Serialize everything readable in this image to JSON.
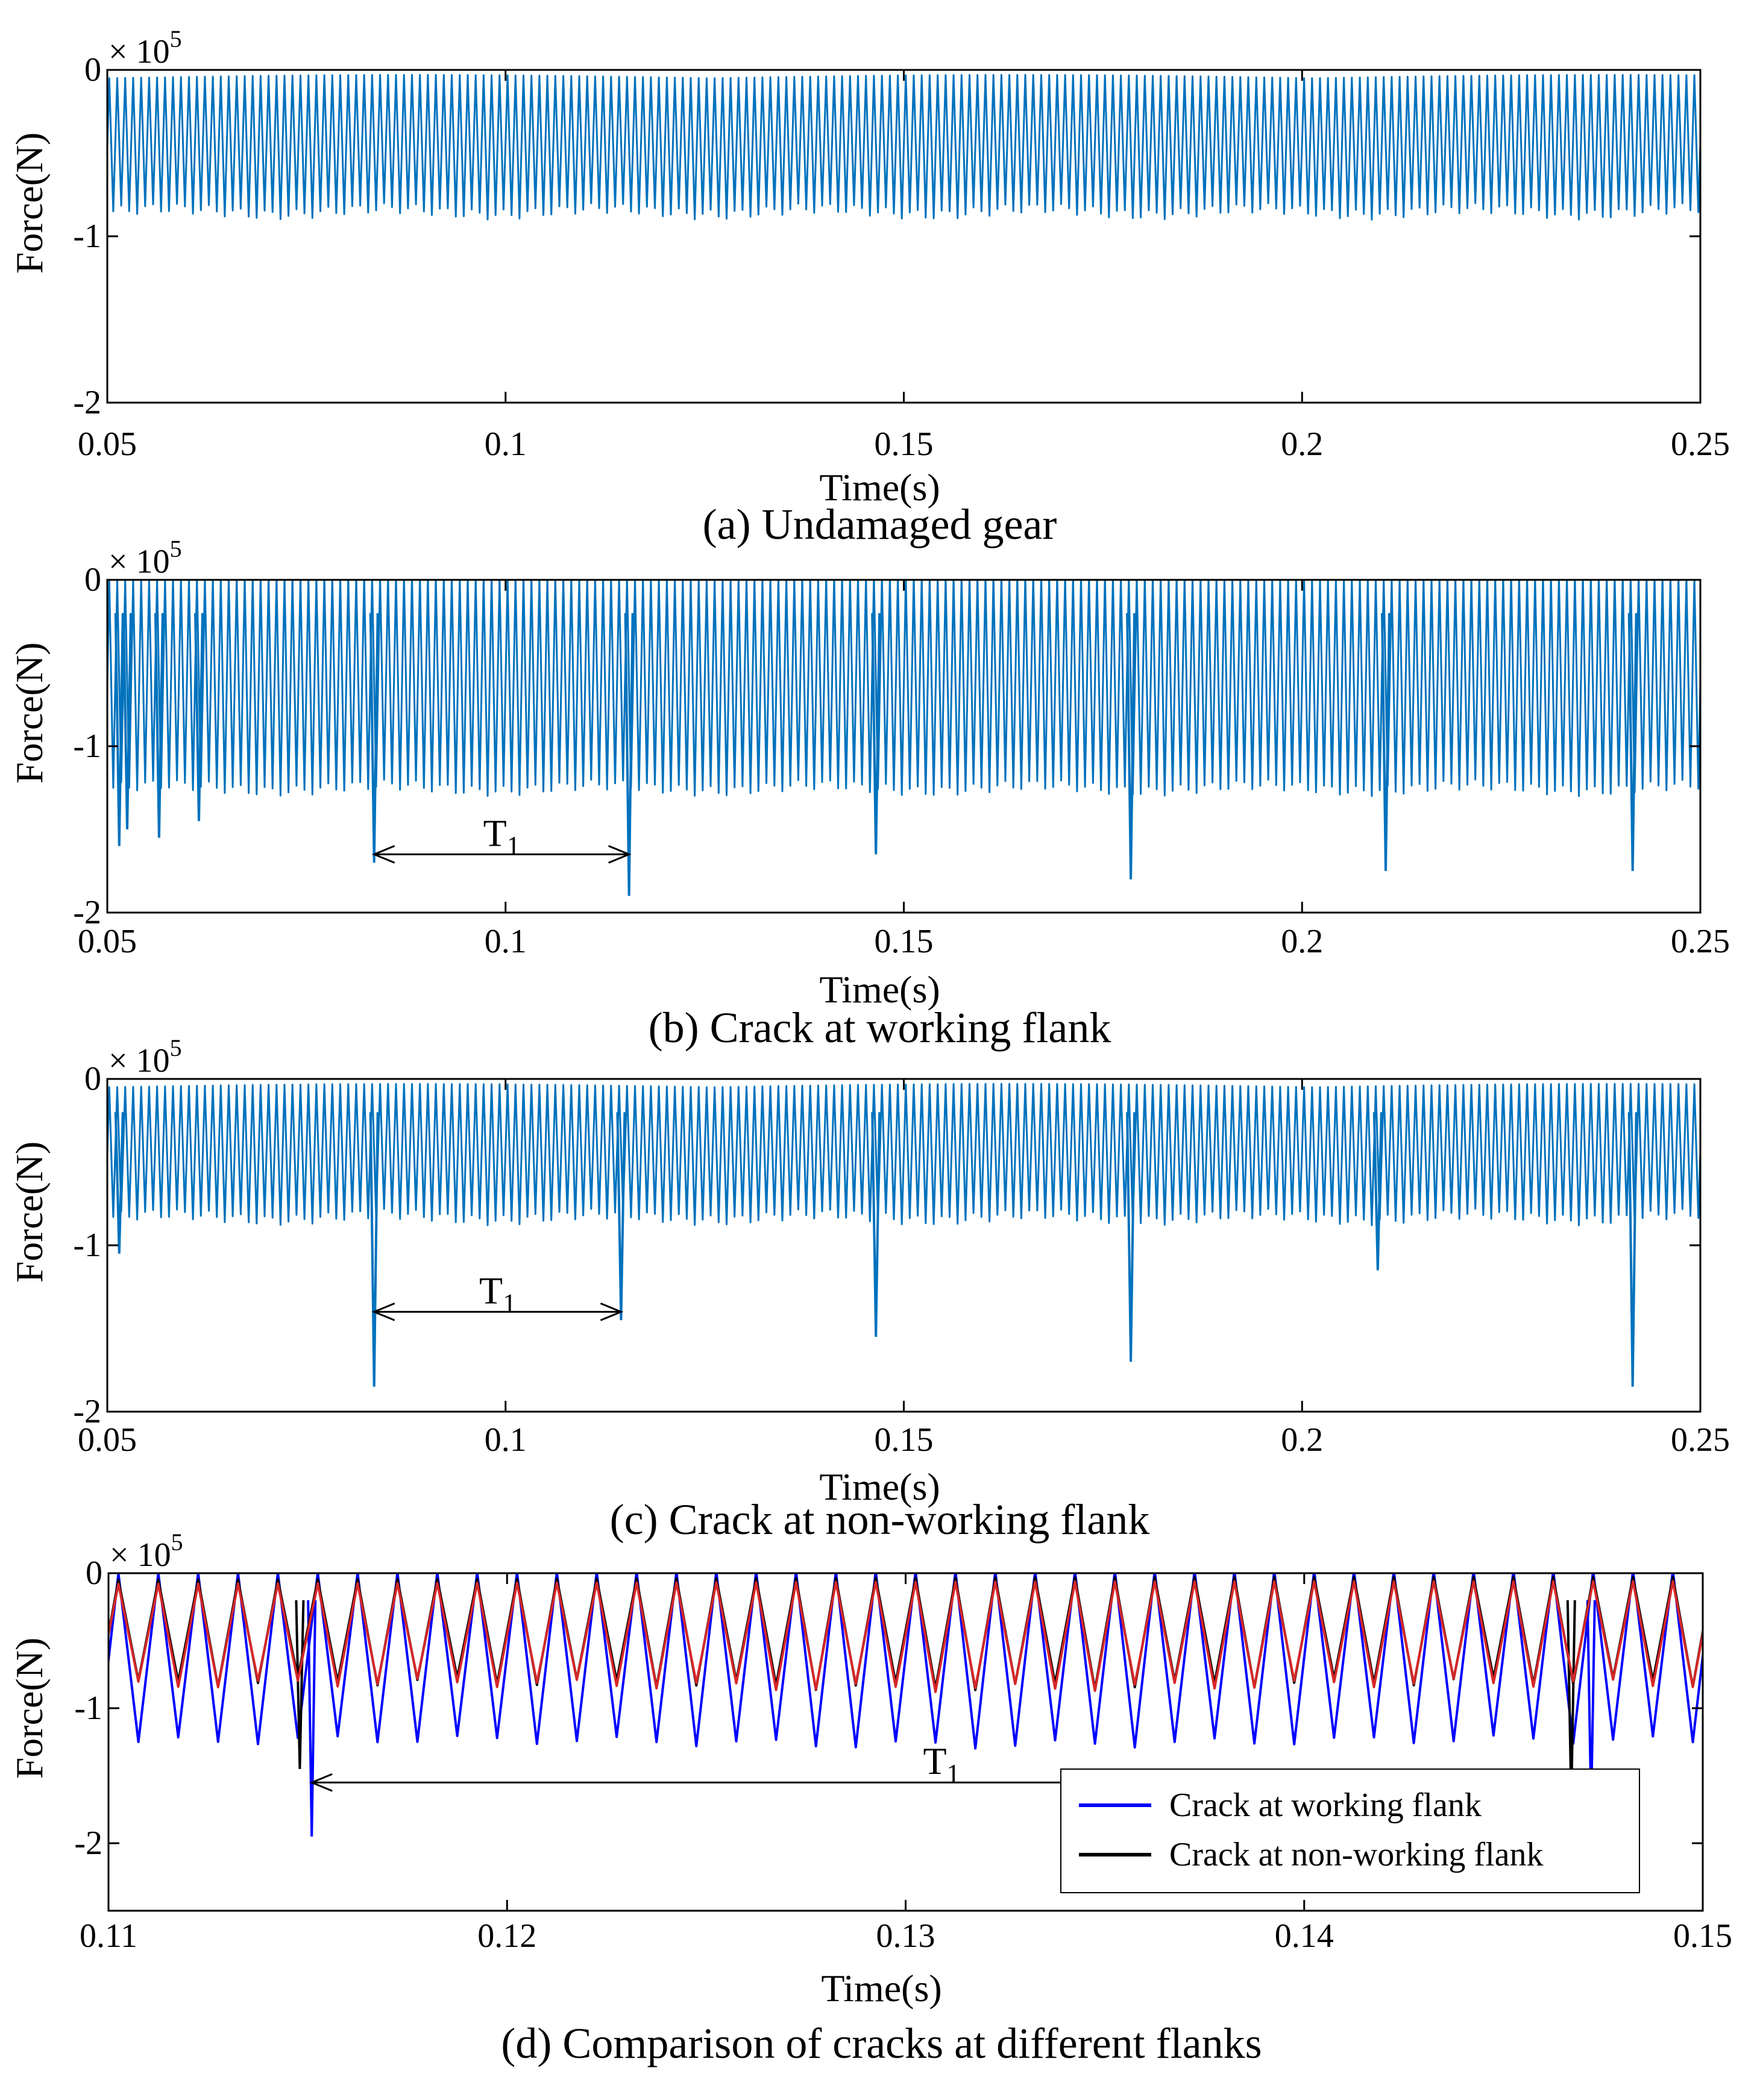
{
  "chart_data": [
    {
      "id": "a",
      "type": "line",
      "caption": "(a) Undamaged gear",
      "xlabel": "Time(s)",
      "ylabel": "Force(N)",
      "y_multiplier": "× 10",
      "y_multiplier_exp": "5",
      "xlim": [
        0.05,
        0.25
      ],
      "ylim": [
        -2,
        0
      ],
      "xticks": [
        0.05,
        0.1,
        0.15,
        0.2,
        0.25
      ],
      "xtick_labels": [
        "0.05",
        "0.1",
        "0.15",
        "0.2",
        "0.25"
      ],
      "yticks": [
        0,
        -1,
        -2
      ],
      "ytick_labels": [
        "0",
        "-1",
        "-2"
      ],
      "series": [
        {
          "name": "Undamaged gear",
          "color": "#0072bd",
          "mesh_period_s": 0.001,
          "peak": -0.05,
          "trough": -0.85,
          "crack_spikes": []
        }
      ],
      "annotations": []
    },
    {
      "id": "b",
      "type": "line",
      "caption": "(b) Crack at working flank",
      "xlabel": "Time(s)",
      "ylabel": "Force(N)",
      "y_multiplier": "× 10",
      "y_multiplier_exp": "5",
      "xlim": [
        0.05,
        0.25
      ],
      "ylim": [
        -2,
        0
      ],
      "xticks": [
        0.05,
        0.1,
        0.15,
        0.2,
        0.25
      ],
      "xtick_labels": [
        "0.05",
        "0.1",
        "0.15",
        "0.2",
        "0.25"
      ],
      "yticks": [
        0,
        -1,
        -2
      ],
      "ytick_labels": [
        "0",
        "-1",
        "-2"
      ],
      "series": [
        {
          "name": "Crack at working flank",
          "color": "#0072bd",
          "mesh_period_s": 0.001,
          "peak": 0,
          "trough": -1.25,
          "crack_spikes": [
            {
              "x": 0.0515,
              "y": -1.6
            },
            {
              "x": 0.0525,
              "y": -1.5
            },
            {
              "x": 0.0565,
              "y": -1.55
            },
            {
              "x": 0.0615,
              "y": -1.45
            },
            {
              "x": 0.0835,
              "y": -1.7
            },
            {
              "x": 0.1155,
              "y": -1.9
            },
            {
              "x": 0.1465,
              "y": -1.65
            },
            {
              "x": 0.1785,
              "y": -1.8
            },
            {
              "x": 0.2105,
              "y": -1.75
            },
            {
              "x": 0.2415,
              "y": -1.75
            }
          ]
        }
      ],
      "annotations": [
        {
          "label": "T",
          "sub": "1",
          "x_start": 0.0835,
          "x_end": 0.1155,
          "y": -1.65
        }
      ]
    },
    {
      "id": "c",
      "type": "line",
      "caption": "(c) Crack at non-working flank",
      "xlabel": "Time(s)",
      "ylabel": "Force(N)",
      "y_multiplier": "× 10",
      "y_multiplier_exp": "5",
      "xlim": [
        0.05,
        0.25
      ],
      "ylim": [
        -2,
        0
      ],
      "xticks": [
        0.05,
        0.1,
        0.15,
        0.2,
        0.25
      ],
      "xtick_labels": [
        "0.05",
        "0.1",
        "0.15",
        "0.2",
        "0.25"
      ],
      "yticks": [
        0,
        -1,
        -2
      ],
      "ytick_labels": [
        "0",
        "-1",
        "-2"
      ],
      "series": [
        {
          "name": "Crack at non-working flank",
          "color": "#0072bd",
          "mesh_period_s": 0.001,
          "peak": -0.05,
          "trough": -0.83,
          "crack_spikes": [
            {
              "x": 0.0515,
              "y": -1.05
            },
            {
              "x": 0.0835,
              "y": -1.85
            },
            {
              "x": 0.1145,
              "y": -1.45
            },
            {
              "x": 0.1465,
              "y": -1.55
            },
            {
              "x": 0.1785,
              "y": -1.7
            },
            {
              "x": 0.2095,
              "y": -1.15
            },
            {
              "x": 0.2415,
              "y": -1.85
            }
          ]
        }
      ],
      "annotations": [
        {
          "label": "T",
          "sub": "1",
          "x_start": 0.0835,
          "x_end": 0.1145,
          "y": -1.4
        }
      ]
    },
    {
      "id": "d",
      "type": "line",
      "caption": "(d) Comparison of cracks at different flanks",
      "xlabel": "Time(s)",
      "ylabel": "Force(N)",
      "y_multiplier": "× 10",
      "y_multiplier_exp": "5",
      "xlim": [
        0.11,
        0.15
      ],
      "ylim": [
        -2.5,
        0
      ],
      "xticks": [
        0.11,
        0.12,
        0.13,
        0.14,
        0.15
      ],
      "xtick_labels": [
        "0.11",
        "0.12",
        "0.13",
        "0.14",
        "0.15"
      ],
      "yticks": [
        0,
        -1,
        -2
      ],
      "ytick_labels": [
        "0",
        "-1",
        "-2"
      ],
      "series": [
        {
          "name": "Crack at working flank",
          "color": "#0000ff",
          "mesh_period_s": 0.001,
          "peak": 0,
          "trough": -1.25,
          "crack_spikes": [
            {
              "x": 0.1151,
              "y": -1.95
            },
            {
              "x": 0.1472,
              "y": -1.75
            }
          ]
        },
        {
          "name": "Crack at non-working flank",
          "color": "#000000",
          "mesh_period_s": 0.001,
          "peak": -0.05,
          "trough": -0.82,
          "crack_spikes": [
            {
              "x": 0.1148,
              "y": -1.45
            },
            {
              "x": 0.1467,
              "y": -1.7
            }
          ]
        },
        {
          "name": "Undamaged gear",
          "color": "#d62728",
          "mesh_period_s": 0.001,
          "peak": -0.08,
          "trough": -0.83,
          "crack_spikes": []
        }
      ],
      "legend": {
        "position": "lower-right",
        "entries": [
          {
            "label": "Crack at working flank",
            "color": "#0000ff"
          },
          {
            "label": "Crack at non-working flank",
            "color": "#000000"
          }
        ]
      },
      "annotations": [
        {
          "label": "T",
          "sub": "1",
          "x_start": 0.1151,
          "x_end": 0.1467,
          "y": -1.55
        }
      ]
    }
  ]
}
